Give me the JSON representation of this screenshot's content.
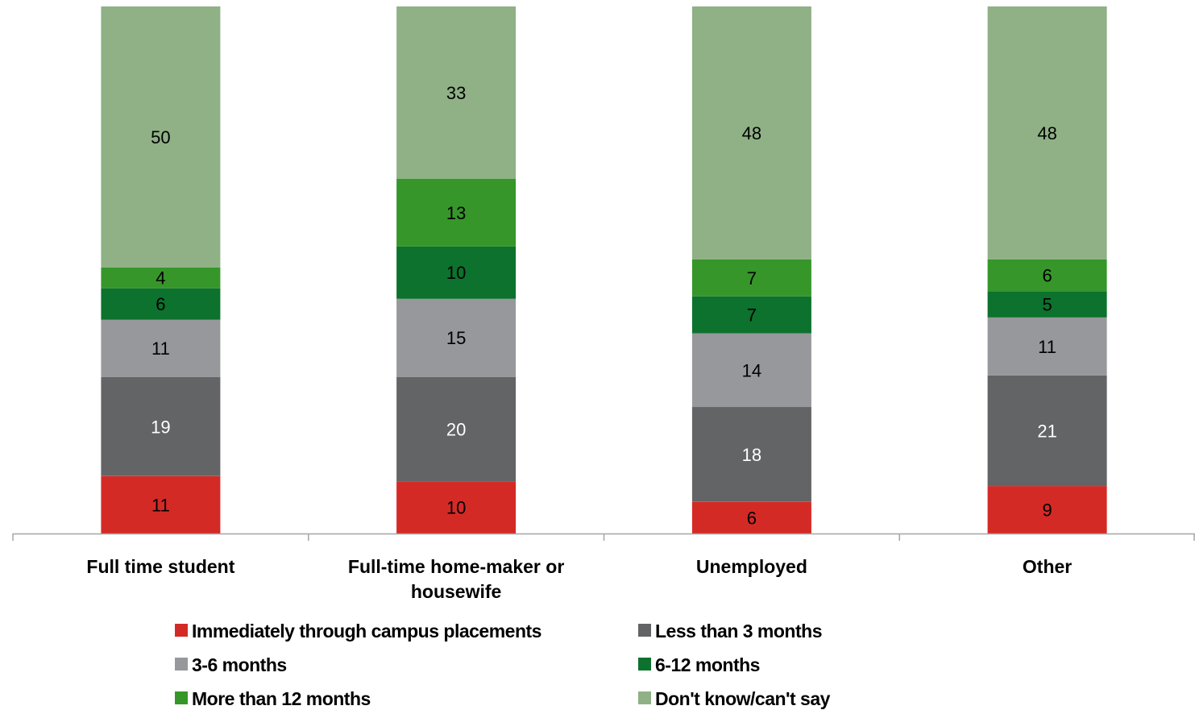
{
  "chart_data": {
    "type": "bar",
    "stacked": true,
    "categories": [
      [
        "Full time student"
      ],
      [
        "Full-time home-maker or",
        "housewife"
      ],
      [
        "Unemployed"
      ],
      [
        "Other"
      ]
    ],
    "series": [
      {
        "name": "Immediately through campus placements",
        "color": "#d42a26",
        "label_color": "#000000",
        "values": [
          11,
          10,
          6,
          9
        ]
      },
      {
        "name": "Less than 3 months",
        "color": "#636466",
        "label_color": "#ffffff",
        "values": [
          19,
          20,
          18,
          21
        ]
      },
      {
        "name": "3-6 months",
        "color": "#97989b",
        "label_color": "#000000",
        "values": [
          11,
          15,
          14,
          11
        ]
      },
      {
        "name": "6-12 months",
        "color": "#0c722d",
        "label_color": "#000000",
        "values": [
          6,
          10,
          7,
          5
        ]
      },
      {
        "name": "More than 12 months",
        "color": "#36962a",
        "label_color": "#000000",
        "values": [
          4,
          13,
          7,
          6
        ]
      },
      {
        "name": "Don't know/can't say",
        "color": "#8fb185",
        "label_color": "#000000",
        "values": [
          50,
          33,
          48,
          48
        ]
      }
    ],
    "ylim": [
      0,
      100
    ],
    "grid": false,
    "legend_position": "bottom",
    "axis_color": "#a6a6a6"
  }
}
